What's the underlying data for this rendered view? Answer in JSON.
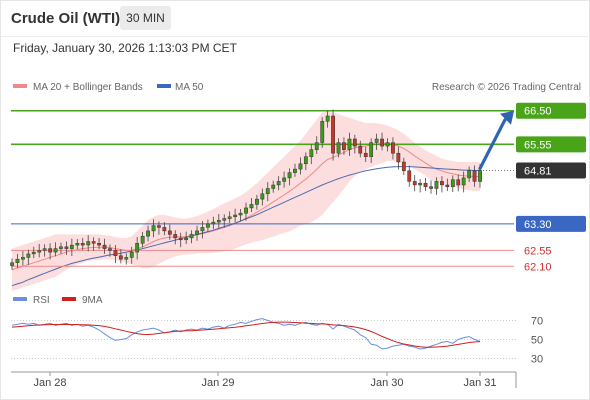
{
  "header": {
    "title": "Crude Oil (WTI)",
    "timeframe": "30 MIN",
    "datetime": "Friday, January 30, 2026 1:13:03 PM CET"
  },
  "legend": {
    "ma20_bb": "MA 20 + Bollinger Bands",
    "ma50": "MA 50",
    "copyright": "Research © 2026 Trading Central",
    "rsi": "RSI",
    "ma9": "9MA"
  },
  "colors": {
    "resistance": "#4aa41a",
    "support": "#3a66c4",
    "support_light": "#f08a8a",
    "current": "#333333",
    "arrow": "#2f63b3",
    "candle_up": "#3c9a1a",
    "candle_down": "#c0392b",
    "ma20": "#f08a8a",
    "ma50": "#4a6bb0",
    "bb_fill": "#fbd3d3",
    "rsi": "#6a8ee0",
    "rsi_ma": "#d02020"
  },
  "chart_data": [
    {
      "type": "candlestick",
      "title": "Crude Oil (WTI)",
      "timeframe": "30 MIN",
      "x_ticks": [
        "Jan 28",
        "Jan 29",
        "Jan 30",
        "Jan 31"
      ],
      "ylim": [
        61.4,
        67.2
      ],
      "levels": [
        {
          "value": 66.5,
          "label": "66.50",
          "kind": "resistance",
          "style": "solid-green"
        },
        {
          "value": 65.55,
          "label": "65.55",
          "kind": "resistance",
          "style": "solid-green"
        },
        {
          "value": 64.81,
          "label": "64.81",
          "kind": "current",
          "style": "dotted"
        },
        {
          "value": 63.3,
          "label": "63.30",
          "kind": "support",
          "style": "solid-blue"
        },
        {
          "value": 62.55,
          "label": "62.55",
          "kind": "support",
          "style": "thin-red"
        },
        {
          "value": 62.1,
          "label": "62.10",
          "kind": "support",
          "style": "thin-red"
        }
      ],
      "close": [
        62.2,
        62.3,
        62.35,
        62.45,
        62.5,
        62.55,
        62.6,
        62.5,
        62.6,
        62.65,
        62.6,
        62.7,
        62.75,
        62.7,
        62.8,
        62.75,
        62.7,
        62.6,
        62.55,
        62.4,
        62.3,
        62.35,
        62.5,
        62.75,
        62.95,
        63.1,
        63.25,
        63.2,
        63.1,
        63.0,
        62.9,
        62.85,
        62.9,
        63.0,
        63.1,
        63.2,
        63.3,
        63.35,
        63.4,
        63.45,
        63.5,
        63.55,
        63.6,
        63.75,
        63.85,
        64.0,
        64.15,
        64.3,
        64.4,
        64.5,
        64.6,
        64.75,
        64.85,
        65.0,
        65.2,
        65.4,
        65.6,
        66.2,
        66.35,
        65.3,
        65.6,
        65.4,
        65.7,
        65.5,
        65.3,
        65.2,
        65.6,
        65.7,
        65.5,
        65.6,
        65.3,
        65.05,
        64.8,
        64.5,
        64.4,
        64.45,
        64.35,
        64.3,
        64.5,
        64.4,
        64.35,
        64.55,
        64.4,
        64.6,
        64.8,
        64.5,
        64.81
      ],
      "ma20": [
        62.0,
        62.05,
        62.1,
        62.15,
        62.2,
        62.25,
        62.3,
        62.35,
        62.4,
        62.45,
        62.5,
        62.55,
        62.57,
        62.6,
        62.62,
        62.63,
        62.64,
        62.64,
        62.63,
        62.6,
        62.57,
        62.55,
        62.55,
        62.6,
        62.65,
        62.72,
        62.8,
        62.86,
        62.9,
        62.92,
        62.93,
        62.93,
        62.94,
        62.96,
        62.99,
        63.02,
        63.06,
        63.1,
        63.15,
        63.2,
        63.25,
        63.31,
        63.38,
        63.46,
        63.54,
        63.63,
        63.72,
        63.82,
        63.92,
        64.02,
        64.12,
        64.22,
        64.33,
        64.45,
        64.57,
        64.7,
        64.84,
        65.0,
        65.12,
        65.18,
        65.25,
        65.32,
        65.4,
        65.45,
        65.48,
        65.5,
        65.53,
        65.56,
        65.57,
        65.58,
        65.55,
        65.5,
        65.43,
        65.33,
        65.22,
        65.12,
        65.02,
        64.92,
        64.85,
        64.8,
        64.75,
        64.72,
        64.68,
        64.66,
        64.65,
        64.64,
        64.64
      ],
      "ma50": [
        61.55,
        61.6,
        61.65,
        61.72,
        61.78,
        61.84,
        61.9,
        61.96,
        62.02,
        62.08,
        62.13,
        62.18,
        62.22,
        62.26,
        62.3,
        62.33,
        62.36,
        62.39,
        62.42,
        62.44,
        62.47,
        62.5,
        62.53,
        62.56,
        62.6,
        62.64,
        62.68,
        62.72,
        62.76,
        62.8,
        62.84,
        62.88,
        62.92,
        62.96,
        63.0,
        63.04,
        63.08,
        63.12,
        63.17,
        63.22,
        63.27,
        63.32,
        63.38,
        63.44,
        63.5,
        63.56,
        63.63,
        63.7,
        63.77,
        63.84,
        63.91,
        63.98,
        64.05,
        64.12,
        64.19,
        64.26,
        64.33,
        64.4,
        64.46,
        64.52,
        64.58,
        64.63,
        64.68,
        64.72,
        64.76,
        64.8,
        64.83,
        64.86,
        64.88,
        64.9,
        64.91,
        64.92,
        64.92,
        64.92,
        64.91,
        64.9,
        64.89,
        64.88,
        64.87,
        64.86,
        64.85,
        64.84,
        64.83,
        64.82,
        64.82,
        64.81,
        64.81
      ],
      "bb_upper": [
        62.6,
        62.65,
        62.7,
        62.75,
        62.8,
        62.85,
        62.9,
        62.95,
        63.0,
        63.0,
        63.0,
        63.0,
        63.0,
        63.0,
        63.0,
        63.0,
        63.0,
        62.98,
        62.96,
        62.93,
        62.9,
        62.9,
        62.95,
        63.1,
        63.25,
        63.4,
        63.5,
        63.55,
        63.55,
        63.52,
        63.48,
        63.45,
        63.45,
        63.48,
        63.52,
        63.58,
        63.65,
        63.72,
        63.8,
        63.88,
        63.95,
        64.02,
        64.1,
        64.2,
        64.32,
        64.45,
        64.6,
        64.75,
        64.9,
        65.05,
        65.2,
        65.35,
        65.5,
        65.65,
        65.85,
        66.05,
        66.25,
        66.45,
        66.5,
        66.45,
        66.4,
        66.35,
        66.3,
        66.25,
        66.2,
        66.15,
        66.15,
        66.15,
        66.12,
        66.08,
        66.02,
        65.95,
        65.85,
        65.72,
        65.6,
        65.48,
        65.38,
        65.3,
        65.22,
        65.15,
        65.1,
        65.08,
        65.05,
        65.05,
        65.05,
        65.05,
        65.05
      ],
      "bb_lower": [
        61.4,
        61.45,
        61.5,
        61.55,
        61.6,
        61.65,
        61.7,
        61.75,
        61.8,
        61.9,
        62.0,
        62.1,
        62.15,
        62.2,
        62.25,
        62.27,
        62.28,
        62.3,
        62.3,
        62.27,
        62.24,
        62.2,
        62.15,
        62.1,
        62.05,
        62.04,
        62.1,
        62.17,
        62.25,
        62.32,
        62.38,
        62.41,
        62.43,
        62.44,
        62.46,
        62.46,
        62.47,
        62.48,
        62.5,
        62.52,
        62.55,
        62.6,
        62.66,
        62.72,
        62.76,
        62.81,
        62.84,
        62.89,
        62.94,
        62.99,
        63.04,
        63.09,
        63.16,
        63.25,
        63.29,
        63.35,
        63.43,
        63.55,
        63.74,
        63.91,
        64.1,
        64.29,
        64.5,
        64.65,
        64.76,
        64.85,
        64.91,
        64.97,
        65.02,
        65.08,
        65.08,
        65.05,
        65.01,
        64.94,
        64.84,
        64.76,
        64.66,
        64.54,
        64.48,
        64.45,
        64.4,
        64.36,
        64.31,
        64.27,
        64.25,
        64.23,
        64.23
      ]
    },
    {
      "type": "line",
      "title": "RSI",
      "y_ticks": [
        70,
        50,
        30
      ],
      "ylim": [
        20,
        80
      ],
      "series": [
        {
          "name": "RSI",
          "values": [
            65,
            66,
            67,
            66,
            67,
            65,
            66,
            67,
            65,
            66,
            67,
            65,
            66,
            64,
            65,
            63,
            60,
            56,
            52,
            49,
            50,
            51,
            55,
            58,
            60,
            61,
            62,
            60,
            57,
            58,
            60,
            58,
            60,
            61,
            60,
            62,
            61,
            63,
            64,
            62,
            65,
            66,
            68,
            67,
            69,
            71,
            72,
            70,
            68,
            67,
            65,
            66,
            65,
            67,
            68,
            66,
            65,
            67,
            66,
            61,
            66,
            64,
            62,
            60,
            55,
            52,
            45,
            44,
            40,
            41,
            43,
            44,
            45,
            43,
            42,
            40,
            41,
            43,
            45,
            47,
            48,
            46,
            50,
            52,
            53,
            50,
            48
          ]
        },
        {
          "name": "9MA",
          "values": [
            63,
            63.5,
            64,
            64.5,
            65,
            65.3,
            65.5,
            65.7,
            65.8,
            65.8,
            65.9,
            65.8,
            65.7,
            65.6,
            65.4,
            65.1,
            64.6,
            63.8,
            62.6,
            61.3,
            60.0,
            58.6,
            57.4,
            56.2,
            55.4,
            55.3,
            55.7,
            56.4,
            57.2,
            57.9,
            58.5,
            58.9,
            59.2,
            59.3,
            59.6,
            60.0,
            60.4,
            60.8,
            61.3,
            61.8,
            62.3,
            62.8,
            63.6,
            64.4,
            65.2,
            66.0,
            66.8,
            67.5,
            68.0,
            68.3,
            68.3,
            68.2,
            67.9,
            67.6,
            67.2,
            66.9,
            66.5,
            66.4,
            66.1,
            65.4,
            65.0,
            64.6,
            64.0,
            63.2,
            62.0,
            60.4,
            58.4,
            56.0,
            53.3,
            51.0,
            48.6,
            46.7,
            45.3,
            44.2,
            43.2,
            42.3,
            41.9,
            41.8,
            42.1,
            42.5,
            43.1,
            43.9,
            44.8,
            45.8,
            46.8,
            47.4,
            47.8
          ]
        }
      ]
    }
  ]
}
